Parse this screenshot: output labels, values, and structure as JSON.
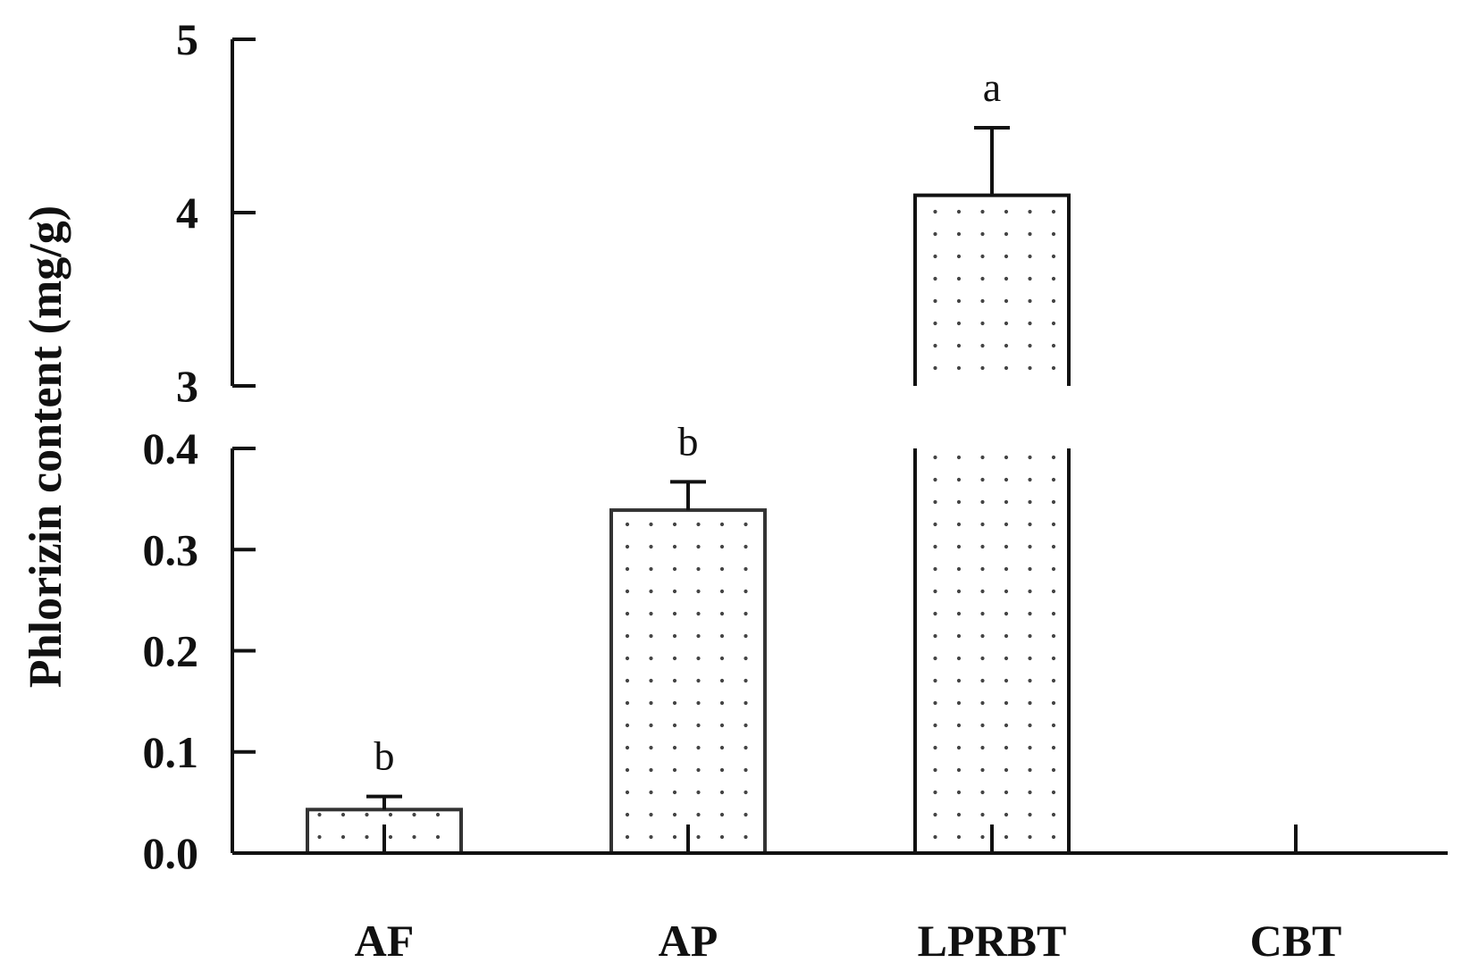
{
  "chart_data": {
    "type": "bar",
    "ylabel": "Phlorizin content (mg/g)",
    "categories": [
      "AF",
      "AP",
      "LPRBT",
      "CBT"
    ],
    "values": [
      0.043,
      0.339,
      4.1,
      0.0
    ],
    "errors": [
      0.013,
      0.028,
      0.39,
      0.0
    ],
    "significance": [
      "b",
      "b",
      "a",
      ""
    ],
    "y_axis_broken": true,
    "y_lower_range": [
      0.0,
      0.4
    ],
    "y_upper_range": [
      3,
      5
    ],
    "y_lower_ticks": [
      "0.0",
      "0.1",
      "0.2",
      "0.3",
      "0.4"
    ],
    "y_upper_ticks": [
      "3",
      "4",
      "5"
    ],
    "bar_fill": "dotted",
    "bar_stroke_color": "#333333",
    "grid": false,
    "legend": "none"
  }
}
